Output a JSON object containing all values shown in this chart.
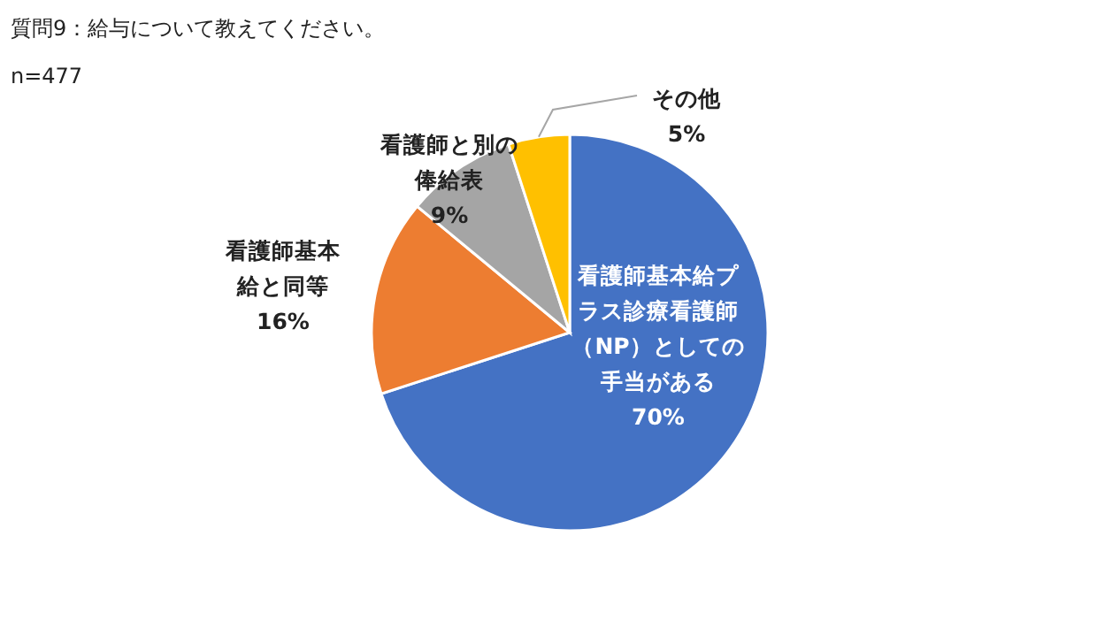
{
  "chart_data": {
    "type": "pie",
    "title": "質問9：給与について教えてください。",
    "subtitle": "n=477",
    "categories": [
      "看護師基本給プラス診療看護師（NP）としての手当がある",
      "看護師基本給と同等",
      "看護師と別の俸給表",
      "その他"
    ],
    "values": [
      70,
      16,
      9,
      5
    ],
    "colors": [
      "#4472c4",
      "#ed7d31",
      "#a5a5a5",
      "#ffc000"
    ],
    "value_labels": [
      "70%",
      "16%",
      "9%",
      "5%"
    ]
  }
}
